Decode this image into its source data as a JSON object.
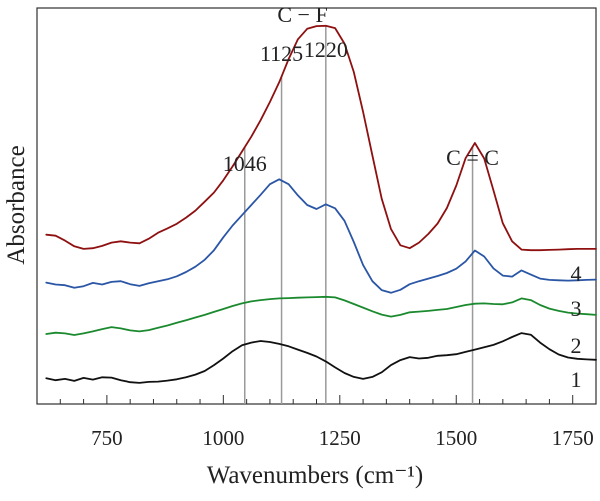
{
  "chart_data": {
    "type": "line",
    "title": "",
    "xlabel": "Wavenumbers (cm⁻¹)",
    "ylabel": "Absorbance",
    "xlim": [
      600,
      1800
    ],
    "x_ticks": [
      "750",
      "1000",
      "1250",
      "1500",
      "1750"
    ],
    "x_tick_values": [
      750,
      1000,
      1250,
      1500,
      1750
    ],
    "grid": false,
    "legend": "right-inline",
    "annotations": [
      {
        "text": "1046",
        "x": 1046,
        "label_offset": 0.12
      },
      {
        "text": "1125",
        "x": 1125,
        "label_offset": 0.11
      },
      {
        "text": "1220",
        "x": 1220,
        "label_offset": 0.1
      },
      {
        "text": "C − F",
        "x": 1170,
        "label_offset": 0.17
      },
      {
        "text": "C = C",
        "x": 1535,
        "label_offset": 0.1
      }
    ],
    "vertical_lines": [
      1046,
      1125,
      1220,
      1535
    ],
    "series": [
      {
        "name": "1",
        "color": "#111111",
        "points": [
          [
            620,
            0.078
          ],
          [
            640,
            0.072
          ],
          [
            660,
            0.076
          ],
          [
            680,
            0.07
          ],
          [
            700,
            0.079
          ],
          [
            720,
            0.074
          ],
          [
            740,
            0.081
          ],
          [
            760,
            0.08
          ],
          [
            780,
            0.072
          ],
          [
            800,
            0.066
          ],
          [
            820,
            0.064
          ],
          [
            840,
            0.067
          ],
          [
            860,
            0.068
          ],
          [
            880,
            0.071
          ],
          [
            900,
            0.075
          ],
          [
            920,
            0.081
          ],
          [
            940,
            0.089
          ],
          [
            960,
            0.1
          ],
          [
            980,
            0.118
          ],
          [
            1000,
            0.138
          ],
          [
            1020,
            0.16
          ],
          [
            1040,
            0.178
          ],
          [
            1060,
            0.186
          ],
          [
            1080,
            0.191
          ],
          [
            1100,
            0.188
          ],
          [
            1120,
            0.182
          ],
          [
            1140,
            0.175
          ],
          [
            1160,
            0.165
          ],
          [
            1180,
            0.155
          ],
          [
            1200,
            0.144
          ],
          [
            1220,
            0.129
          ],
          [
            1240,
            0.111
          ],
          [
            1260,
            0.094
          ],
          [
            1280,
            0.082
          ],
          [
            1300,
            0.076
          ],
          [
            1320,
            0.082
          ],
          [
            1340,
            0.096
          ],
          [
            1360,
            0.118
          ],
          [
            1380,
            0.133
          ],
          [
            1400,
            0.142
          ],
          [
            1420,
            0.138
          ],
          [
            1440,
            0.14
          ],
          [
            1460,
            0.146
          ],
          [
            1480,
            0.148
          ],
          [
            1500,
            0.151
          ],
          [
            1520,
            0.158
          ],
          [
            1540,
            0.165
          ],
          [
            1560,
            0.172
          ],
          [
            1580,
            0.179
          ],
          [
            1600,
            0.19
          ],
          [
            1620,
            0.203
          ],
          [
            1640,
            0.215
          ],
          [
            1660,
            0.21
          ],
          [
            1680,
            0.186
          ],
          [
            1700,
            0.166
          ],
          [
            1720,
            0.15
          ],
          [
            1740,
            0.141
          ],
          [
            1760,
            0.137
          ],
          [
            1780,
            0.135
          ],
          [
            1800,
            0.134
          ]
        ]
      },
      {
        "name": "2",
        "color": "#1b8a2e",
        "points": [
          [
            620,
            0.212
          ],
          [
            640,
            0.216
          ],
          [
            660,
            0.214
          ],
          [
            680,
            0.209
          ],
          [
            700,
            0.214
          ],
          [
            720,
            0.22
          ],
          [
            740,
            0.227
          ],
          [
            760,
            0.233
          ],
          [
            780,
            0.229
          ],
          [
            800,
            0.223
          ],
          [
            820,
            0.22
          ],
          [
            840,
            0.224
          ],
          [
            860,
            0.231
          ],
          [
            880,
            0.238
          ],
          [
            900,
            0.246
          ],
          [
            920,
            0.254
          ],
          [
            940,
            0.262
          ],
          [
            960,
            0.27
          ],
          [
            980,
            0.279
          ],
          [
            1000,
            0.288
          ],
          [
            1020,
            0.297
          ],
          [
            1040,
            0.305
          ],
          [
            1060,
            0.311
          ],
          [
            1080,
            0.315
          ],
          [
            1100,
            0.318
          ],
          [
            1120,
            0.32
          ],
          [
            1140,
            0.321
          ],
          [
            1160,
            0.322
          ],
          [
            1180,
            0.323
          ],
          [
            1200,
            0.324
          ],
          [
            1220,
            0.325
          ],
          [
            1240,
            0.323
          ],
          [
            1260,
            0.314
          ],
          [
            1280,
            0.303
          ],
          [
            1300,
            0.292
          ],
          [
            1320,
            0.281
          ],
          [
            1340,
            0.271
          ],
          [
            1360,
            0.265
          ],
          [
            1380,
            0.27
          ],
          [
            1400,
            0.278
          ],
          [
            1420,
            0.28
          ],
          [
            1440,
            0.282
          ],
          [
            1460,
            0.285
          ],
          [
            1480,
            0.288
          ],
          [
            1500,
            0.294
          ],
          [
            1520,
            0.3
          ],
          [
            1540,
            0.304
          ],
          [
            1560,
            0.305
          ],
          [
            1580,
            0.303
          ],
          [
            1600,
            0.302
          ],
          [
            1620,
            0.308
          ],
          [
            1640,
            0.32
          ],
          [
            1660,
            0.315
          ],
          [
            1680,
            0.3
          ],
          [
            1700,
            0.289
          ],
          [
            1720,
            0.282
          ],
          [
            1740,
            0.277
          ],
          [
            1760,
            0.274
          ],
          [
            1780,
            0.272
          ],
          [
            1800,
            0.27
          ]
        ]
      },
      {
        "name": "3",
        "color": "#2a56a5",
        "points": [
          [
            620,
            0.368
          ],
          [
            640,
            0.362
          ],
          [
            660,
            0.36
          ],
          [
            680,
            0.352
          ],
          [
            700,
            0.357
          ],
          [
            720,
            0.367
          ],
          [
            740,
            0.362
          ],
          [
            760,
            0.37
          ],
          [
            780,
            0.372
          ],
          [
            800,
            0.363
          ],
          [
            820,
            0.358
          ],
          [
            840,
            0.366
          ],
          [
            860,
            0.372
          ],
          [
            880,
            0.378
          ],
          [
            900,
            0.387
          ],
          [
            920,
            0.4
          ],
          [
            940,
            0.416
          ],
          [
            960,
            0.437
          ],
          [
            980,
            0.466
          ],
          [
            1000,
            0.505
          ],
          [
            1020,
            0.541
          ],
          [
            1040,
            0.572
          ],
          [
            1060,
            0.603
          ],
          [
            1080,
            0.634
          ],
          [
            1100,
            0.666
          ],
          [
            1120,
            0.681
          ],
          [
            1140,
            0.666
          ],
          [
            1160,
            0.632
          ],
          [
            1180,
            0.603
          ],
          [
            1200,
            0.591
          ],
          [
            1220,
            0.605
          ],
          [
            1240,
            0.593
          ],
          [
            1260,
            0.555
          ],
          [
            1280,
            0.491
          ],
          [
            1300,
            0.421
          ],
          [
            1320,
            0.372
          ],
          [
            1340,
            0.345
          ],
          [
            1360,
            0.337
          ],
          [
            1380,
            0.346
          ],
          [
            1400,
            0.363
          ],
          [
            1420,
            0.372
          ],
          [
            1440,
            0.38
          ],
          [
            1460,
            0.388
          ],
          [
            1480,
            0.397
          ],
          [
            1500,
            0.41
          ],
          [
            1520,
            0.432
          ],
          [
            1540,
            0.465
          ],
          [
            1560,
            0.447
          ],
          [
            1580,
            0.411
          ],
          [
            1600,
            0.389
          ],
          [
            1620,
            0.386
          ],
          [
            1640,
            0.405
          ],
          [
            1660,
            0.392
          ],
          [
            1680,
            0.38
          ],
          [
            1700,
            0.376
          ],
          [
            1720,
            0.375
          ],
          [
            1740,
            0.374
          ],
          [
            1760,
            0.375
          ],
          [
            1780,
            0.376
          ],
          [
            1800,
            0.377
          ]
        ]
      },
      {
        "name": "4",
        "color": "#8f1010",
        "points": [
          [
            620,
            0.513
          ],
          [
            640,
            0.51
          ],
          [
            660,
            0.495
          ],
          [
            680,
            0.478
          ],
          [
            700,
            0.47
          ],
          [
            720,
            0.472
          ],
          [
            740,
            0.479
          ],
          [
            760,
            0.489
          ],
          [
            780,
            0.493
          ],
          [
            800,
            0.489
          ],
          [
            820,
            0.487
          ],
          [
            840,
            0.501
          ],
          [
            860,
            0.519
          ],
          [
            880,
            0.532
          ],
          [
            900,
            0.546
          ],
          [
            920,
            0.565
          ],
          [
            940,
            0.586
          ],
          [
            960,
            0.613
          ],
          [
            980,
            0.641
          ],
          [
            1000,
            0.678
          ],
          [
            1020,
            0.72
          ],
          [
            1040,
            0.765
          ],
          [
            1060,
            0.81
          ],
          [
            1080,
            0.86
          ],
          [
            1100,
            0.915
          ],
          [
            1120,
            0.975
          ],
          [
            1140,
            1.045
          ],
          [
            1160,
            1.105
          ],
          [
            1180,
            1.137
          ],
          [
            1200,
            1.145
          ],
          [
            1220,
            1.146
          ],
          [
            1240,
            1.139
          ],
          [
            1260,
            1.092
          ],
          [
            1280,
            1.006
          ],
          [
            1300,
            0.885
          ],
          [
            1320,
            0.753
          ],
          [
            1340,
            0.622
          ],
          [
            1360,
            0.53
          ],
          [
            1380,
            0.481
          ],
          [
            1400,
            0.472
          ],
          [
            1420,
            0.489
          ],
          [
            1440,
            0.515
          ],
          [
            1460,
            0.547
          ],
          [
            1480,
            0.594
          ],
          [
            1500,
            0.662
          ],
          [
            1520,
            0.745
          ],
          [
            1540,
            0.791
          ],
          [
            1560,
            0.744
          ],
          [
            1580,
            0.647
          ],
          [
            1600,
            0.548
          ],
          [
            1620,
            0.493
          ],
          [
            1640,
            0.468
          ],
          [
            1660,
            0.466
          ],
          [
            1680,
            0.466
          ],
          [
            1700,
            0.467
          ],
          [
            1720,
            0.468
          ],
          [
            1740,
            0.469
          ],
          [
            1760,
            0.47
          ],
          [
            1780,
            0.47
          ],
          [
            1800,
            0.47
          ]
        ]
      }
    ]
  }
}
